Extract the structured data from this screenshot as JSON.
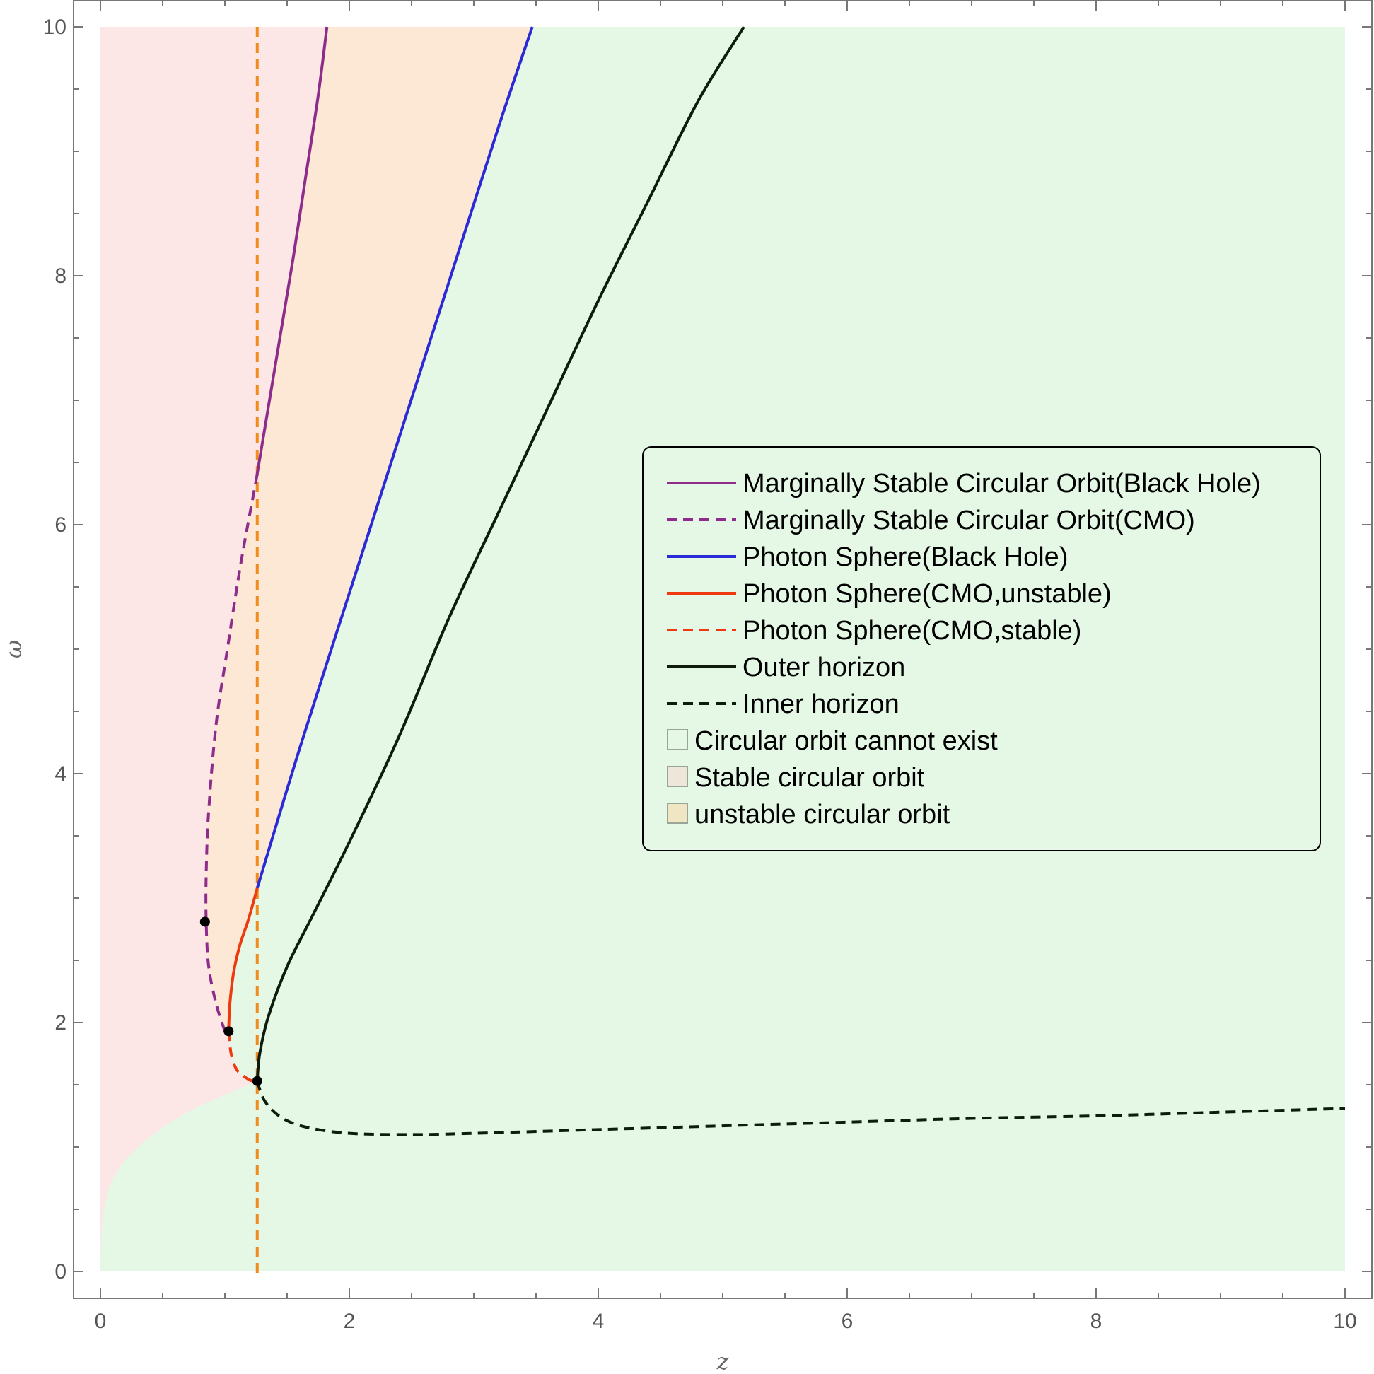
{
  "chart_data": {
    "type": "line",
    "title": "",
    "xlabel": "z",
    "ylabel": "ω",
    "xlim": [
      0,
      10
    ],
    "ylim": [
      0,
      10
    ],
    "xticks": [
      "0",
      "2",
      "4",
      "6",
      "8",
      "10"
    ],
    "yticks": [
      "0",
      "2",
      "4",
      "6",
      "8",
      "10"
    ],
    "grid": false,
    "legend_position": "right",
    "colors": {
      "no_orbit_region": "#e4f8e5",
      "stable_region": "#fde7e6",
      "unstable_region": "#fde8d5",
      "msco": "#8e2c8c",
      "photon_bh": "#2a2ad6",
      "photon_cmo": "#ee3a0e",
      "horizon": "#0d1c0d",
      "vertical_line": "#f08c1e",
      "critical_point": "#000000"
    },
    "regions": [
      {
        "name": "Circular orbit cannot exist",
        "swatch": "#e4f8e5"
      },
      {
        "name": "Stable circular orbit",
        "swatch": "#ede6d9"
      },
      {
        "name": "unstable circular orbit",
        "swatch": "#f1e6c4"
      }
    ],
    "series": [
      {
        "name": "Marginally Stable Circular Orbit(Black Hole)",
        "style": "solid",
        "color": "#8e2c8c",
        "x": [
          1.25,
          1.35,
          1.45,
          1.55,
          1.65,
          1.75,
          1.82
        ],
        "y": [
          6.35,
          6.95,
          7.55,
          8.15,
          8.8,
          9.45,
          10.0
        ]
      },
      {
        "name": "Marginally Stable Circular Orbit(CMO)",
        "style": "dashed",
        "color": "#8e2c8c",
        "x": [
          1.0,
          0.93,
          0.87,
          0.85,
          0.85,
          0.87,
          0.93,
          1.02,
          1.13,
          1.25
        ],
        "y": [
          1.93,
          2.15,
          2.45,
          2.8,
          3.2,
          3.7,
          4.4,
          5.0,
          5.7,
          6.35
        ]
      },
      {
        "name": "Photon Sphere(Black Hole)",
        "style": "solid",
        "color": "#2a2ad6",
        "x": [
          1.26,
          1.6,
          2.0,
          2.4,
          2.8,
          3.2,
          3.47
        ],
        "y": [
          3.08,
          4.2,
          5.45,
          6.7,
          7.95,
          9.2,
          10.0
        ]
      },
      {
        "name": "Photon Sphere(CMO,unstable)",
        "style": "solid",
        "color": "#ee3a0e",
        "x": [
          1.03,
          1.04,
          1.07,
          1.12,
          1.19,
          1.26
        ],
        "y": [
          1.93,
          2.15,
          2.4,
          2.62,
          2.83,
          3.08
        ]
      },
      {
        "name": "Photon Sphere(CMO,stable)",
        "style": "dashed",
        "color": "#ee3a0e",
        "x": [
          1.03,
          1.05,
          1.09,
          1.15,
          1.22,
          1.26
        ],
        "y": [
          1.93,
          1.75,
          1.63,
          1.57,
          1.53,
          1.53
        ]
      },
      {
        "name": "Outer horizon",
        "style": "solid",
        "color": "#0d1c0d",
        "x": [
          1.26,
          1.28,
          1.35,
          1.5,
          1.7,
          2.0,
          2.4,
          2.8,
          3.2,
          3.6,
          4.0,
          4.4,
          4.8,
          5.17
        ],
        "y": [
          1.53,
          1.75,
          2.05,
          2.45,
          2.85,
          3.45,
          4.3,
          5.25,
          6.1,
          6.95,
          7.8,
          8.6,
          9.4,
          10.0
        ]
      },
      {
        "name": "Inner horizon",
        "style": "dashed",
        "color": "#0d1c0d",
        "x": [
          1.26,
          1.32,
          1.45,
          1.65,
          2.0,
          2.5,
          3.0,
          4.0,
          5.0,
          6.0,
          7.0,
          8.0,
          9.0,
          10.0
        ],
        "y": [
          1.53,
          1.37,
          1.24,
          1.16,
          1.11,
          1.1,
          1.11,
          1.14,
          1.17,
          1.2,
          1.23,
          1.25,
          1.28,
          1.31
        ]
      }
    ],
    "vertical_line": {
      "x": 1.26,
      "y_range": [
        -0.05,
        10.0
      ],
      "style": "dashed"
    },
    "critical_points": [
      {
        "x": 0.84,
        "y": 2.81
      },
      {
        "x": 1.03,
        "y": 1.93
      },
      {
        "x": 1.26,
        "y": 1.53
      }
    ],
    "boundaries": {
      "green_region_top_left": {
        "x": [
          0.0,
          0.01,
          0.05,
          0.12,
          0.25,
          0.45,
          0.7,
          1.0,
          1.26
        ],
        "y": [
          0.0,
          0.35,
          0.6,
          0.78,
          0.95,
          1.12,
          1.28,
          1.42,
          1.53
        ]
      }
    }
  }
}
